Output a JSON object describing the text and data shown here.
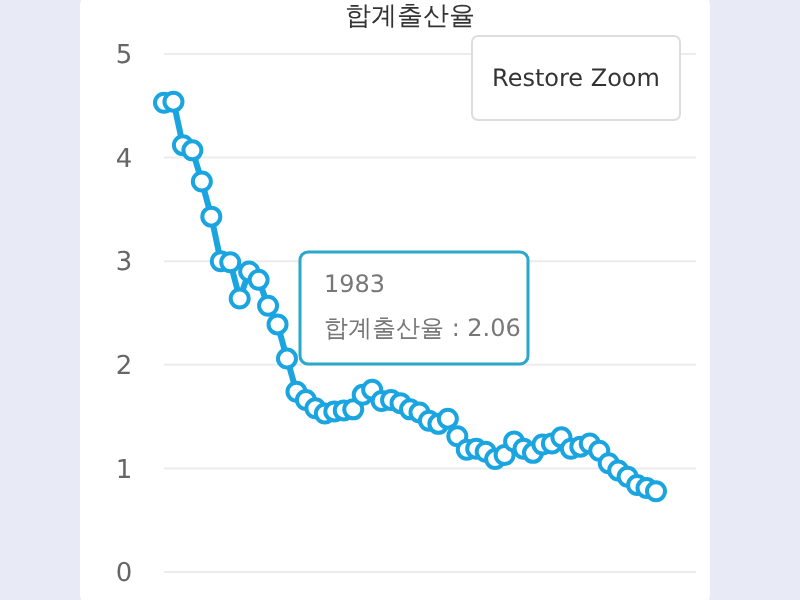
{
  "chart_data": {
    "type": "line",
    "title": "합계출산율",
    "categories": [
      null,
      null,
      null,
      null,
      null,
      null,
      null,
      null,
      null,
      null,
      null,
      null,
      null,
      null,
      null,
      null,
      null,
      null,
      null,
      null,
      null,
      null,
      null,
      null,
      null,
      null,
      null,
      null,
      null,
      null,
      null,
      null,
      null,
      null,
      null,
      null,
      null,
      null,
      null,
      null,
      null,
      null,
      null,
      null,
      null,
      null,
      null,
      null,
      null,
      null,
      null,
      null,
      null
    ],
    "series": [
      {
        "color": "#1ba5e0",
        "values": [
          4.53,
          4.54,
          4.12,
          4.07,
          3.77,
          3.43,
          3.0,
          2.99,
          2.64,
          2.9,
          2.82,
          2.57,
          2.39,
          2.06,
          1.74,
          1.66,
          1.58,
          1.53,
          1.55,
          1.56,
          1.57,
          1.71,
          1.76,
          1.65,
          1.66,
          1.63,
          1.57,
          1.54,
          1.46,
          1.43,
          1.48,
          1.31,
          1.18,
          1.19,
          1.16,
          1.09,
          1.13,
          1.26,
          1.19,
          1.15,
          1.23,
          1.24,
          1.3,
          1.19,
          1.21,
          1.24,
          1.17,
          1.05,
          0.98,
          0.92,
          0.84,
          0.81,
          0.78
        ]
      }
    ],
    "ylim": [
      0,
      5
    ],
    "yticks": [
      0,
      1,
      2,
      3,
      4,
      5
    ],
    "grid": "y",
    "marker": "circle",
    "tick_labels": "y",
    "annotations": [
      "1983\n합계출산율 : 2.06",
      "Restore Zoom"
    ]
  }
}
